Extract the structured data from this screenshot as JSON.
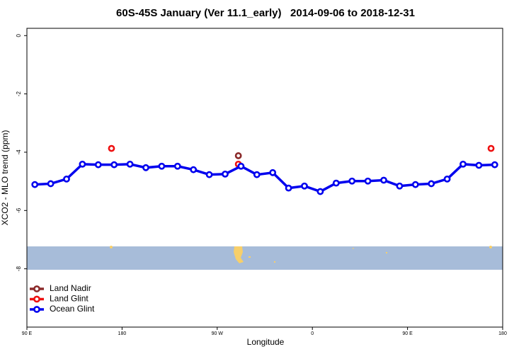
{
  "chart_data": {
    "type": "line",
    "title": "60S-45S January (Ver 11.1_early)   2014-09-06 to 2018-12-31",
    "xlabel": "Longitude",
    "ylabel": "XCO2 - MLO trend (ppm)",
    "xlim": [
      90,
      540
    ],
    "ylim": [
      -10,
      0.25
    ],
    "xticks": [
      {
        "value": 90,
        "label": "90 E"
      },
      180,
      {
        "value": 270,
        "label": "90 W"
      },
      {
        "value": 360,
        "label": "0"
      },
      {
        "value": 450,
        "label": "90 E"
      },
      {
        "value": 540,
        "label": "180"
      }
    ],
    "yticks": [
      0,
      -2,
      -4,
      -6,
      -8
    ],
    "legend": "bottom-left",
    "series": [
      {
        "name": "Land Nadir",
        "color": "#8b2a2a",
        "lines": false,
        "x": [
          290
        ],
        "values": [
          -4.12
        ]
      },
      {
        "name": "Land Glint",
        "color": "#ee1111",
        "lines": false,
        "x": [
          170,
          290,
          529
        ],
        "values": [
          -3.87,
          -4.41,
          -3.87
        ]
      },
      {
        "name": "Ocean Glint",
        "color": "#0000ee",
        "lines": true,
        "x": [
          97.5,
          112.5,
          127.5,
          142.5,
          157.5,
          172.5,
          187.5,
          202.5,
          217.5,
          232.5,
          247.5,
          262.5,
          277.5,
          292.5,
          307.5,
          322.5,
          337.5,
          352.5,
          367.5,
          382.5,
          397.5,
          412.5,
          427.5,
          442.5,
          457.5,
          472.5,
          487.5,
          502.5,
          517.5,
          532.5
        ],
        "values": [
          -5.11,
          -5.08,
          -4.92,
          -4.41,
          -4.43,
          -4.43,
          -4.41,
          -4.53,
          -4.48,
          -4.48,
          -4.6,
          -4.77,
          -4.75,
          -4.48,
          -4.77,
          -4.7,
          -5.23,
          -5.16,
          -5.35,
          -5.06,
          -4.99,
          -4.99,
          -4.96,
          -5.16,
          -5.11,
          -5.08,
          -4.92,
          -4.41,
          -4.45,
          -4.43
        ]
      }
    ]
  }
}
